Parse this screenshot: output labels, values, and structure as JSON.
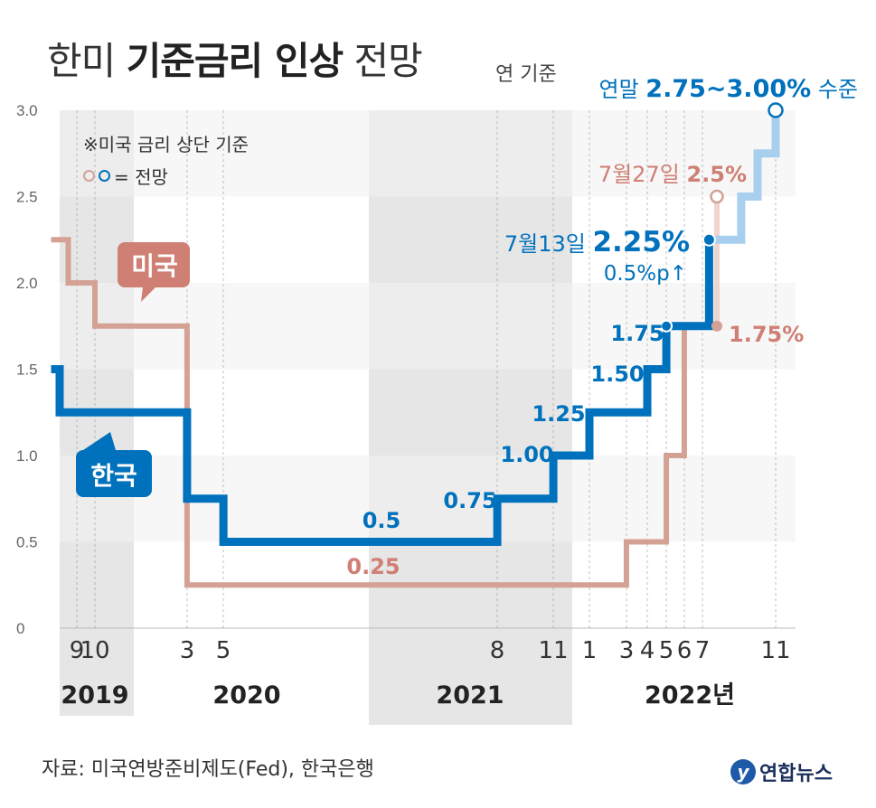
{
  "title": {
    "light1": "한미",
    "bold": "기준금리 인상",
    "light2": "전망"
  },
  "unit_note": "연 기준",
  "note": "※미국 금리 상단 기준",
  "forecast_note": "= 전망",
  "source": "자료: 미국연방준비제도(Fed), 한국은행",
  "logo_text": "연합뉴스",
  "colors": {
    "korea": "#0071bc",
    "korea_forecast": "#a8cfee",
    "us": "#d4a195",
    "us_forecast": "#f0d5ce",
    "band": "#e6e6e6"
  },
  "chart_data": {
    "type": "line",
    "step": true,
    "ylim": [
      0,
      3.0
    ],
    "yticks": [
      "0",
      "0.5",
      "1.0",
      "1.5",
      "2.0",
      "2.5",
      "3.0"
    ],
    "month_labels": [
      "9",
      "10",
      "3",
      "5",
      "8",
      "11",
      "1",
      "3",
      "4",
      "5",
      "6",
      "7",
      "11"
    ],
    "year_labels": [
      "2019",
      "2020",
      "2021",
      "2022년"
    ],
    "series": [
      {
        "name": "미국",
        "values": [
          {
            "x": "2019-06",
            "y": 2.25
          },
          {
            "x": "2019-08",
            "y": 2.0
          },
          {
            "x": "2019-10",
            "y": 1.75
          },
          {
            "x": "2020-03",
            "y": 0.25
          },
          {
            "x": "2022-03",
            "y": 0.5
          },
          {
            "x": "2022-05",
            "y": 1.0
          },
          {
            "x": "2022-06",
            "y": 1.75
          },
          {
            "x": "2022-07",
            "y": 1.75
          }
        ],
        "forecast": [
          {
            "x": "2022-07",
            "y": 1.75
          },
          {
            "x": "2022-07-27",
            "y": 2.5
          }
        ]
      },
      {
        "name": "한국",
        "values": [
          {
            "x": "2019-06",
            "y": 1.5
          },
          {
            "x": "2019-07",
            "y": 1.25
          },
          {
            "x": "2020-03",
            "y": 0.75
          },
          {
            "x": "2020-05",
            "y": 0.5
          },
          {
            "x": "2021-08",
            "y": 0.75
          },
          {
            "x": "2021-11",
            "y": 1.0
          },
          {
            "x": "2022-01",
            "y": 1.25
          },
          {
            "x": "2022-04",
            "y": 1.5
          },
          {
            "x": "2022-05",
            "y": 1.75
          },
          {
            "x": "2022-07-13",
            "y": 2.25
          }
        ],
        "forecast": [
          {
            "x": "2022-07-13",
            "y": 2.25
          },
          {
            "x": "2022-08",
            "y": 2.25
          },
          {
            "x": "2022-09",
            "y": 2.5
          },
          {
            "x": "2022-10",
            "y": 2.75
          },
          {
            "x": "2022-11",
            "y": 3.0
          }
        ]
      }
    ],
    "labels": {
      "us_name": "미국",
      "korea_name": "한국",
      "korea_year_end": {
        "prefix": "연말",
        "value": "2.75~3.00%",
        "suffix": "수준"
      },
      "us_jul27": {
        "prefix": "7월27일",
        "value": "2.5%"
      },
      "korea_jul13": {
        "prefix": "7월13일",
        "value": "2.25%"
      },
      "korea_hike": "0.5%p↑",
      "us_current": "1.75%",
      "korea_steps": [
        "0.5",
        "0.75",
        "1.00",
        "1.25",
        "1.50",
        "1.75"
      ],
      "us_low": "0.25"
    }
  }
}
